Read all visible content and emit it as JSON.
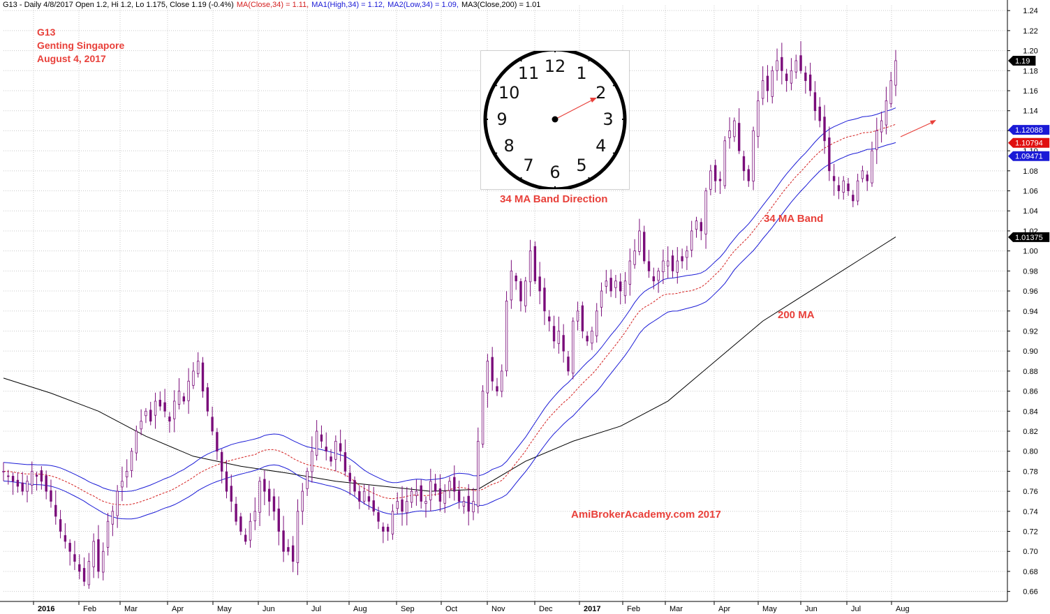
{
  "header": {
    "symbol_info": "G13 - Daily 4/8/2017 Open 1.2, Hi 1.2, Lo 1.175, Close 1.19 (-0.4%)",
    "ma_close_34": "MA(Close,34) = 1.11,",
    "ma1_high_34": "MA1(High,34) = 1.12,",
    "ma2_low_34": "MA2(Low,34) = 1.09,",
    "ma3_close_200": "MA3(Close,200) = 1.01"
  },
  "annotations": {
    "ticker": "G13",
    "company": "Genting Singapore",
    "date": "August 4, 2017",
    "clock_caption": "34 MA Band Direction",
    "band_label": "34 MA Band",
    "ma200_label": "200 MA",
    "watermark": "AmiBrokerAcademy.com  2017"
  },
  "price_tags": {
    "last": "1.19",
    "ma_high": "1.12088",
    "ma_close": "1.10794",
    "ma_low": "1.09471",
    "ma_200": "1.01375"
  },
  "clock": {
    "numbers": [
      "12",
      "1",
      "2",
      "3",
      "4",
      "5",
      "6",
      "7",
      "8",
      "9",
      "10",
      "11"
    ]
  },
  "colors": {
    "candle": "#7a0d7a",
    "band": "#1a1ad6",
    "ma_close": "#d42020",
    "ma_200": "#000000",
    "annotation": "#e8403a",
    "grid": "#c8c8c8"
  },
  "chart_data": {
    "type": "line",
    "title": "G13 - Daily 4/8/2017",
    "x_months": [
      "2016",
      "Feb",
      "Mar",
      "Apr",
      "May",
      "Jun",
      "Jul",
      "Aug",
      "Sep",
      "Oct",
      "Nov",
      "Dec",
      "2017",
      "Feb",
      "Mar",
      "Apr",
      "May",
      "Jun",
      "Jul",
      "Aug"
    ],
    "y_ticks": [
      "1.24",
      "1.22",
      "1.20",
      "1.18",
      "1.16",
      "1.14",
      "1.12",
      "1.10",
      "1.08",
      "1.06",
      "1.04",
      "1.02",
      "1.00",
      "0.98",
      "0.96",
      "0.94",
      "0.92",
      "0.90",
      "0.88",
      "0.86",
      "0.84",
      "0.82",
      "0.80",
      "0.78",
      "0.76",
      "0.74",
      "0.72",
      "0.70",
      "0.68",
      "0.66"
    ],
    "ylim": [
      0.65,
      1.245
    ],
    "close_series": [
      [
        0,
        0.78
      ],
      [
        2,
        0.77
      ],
      [
        4,
        0.76
      ],
      [
        6,
        0.78
      ],
      [
        8,
        0.77
      ],
      [
        10,
        0.75
      ],
      [
        12,
        0.72
      ],
      [
        14,
        0.7
      ],
      [
        16,
        0.68
      ],
      [
        17,
        0.67
      ],
      [
        18,
        0.69
      ],
      [
        19,
        0.71
      ],
      [
        20,
        0.68
      ],
      [
        21,
        0.7
      ],
      [
        22,
        0.73
      ],
      [
        23,
        0.74
      ],
      [
        24,
        0.76
      ],
      [
        25,
        0.77
      ],
      [
        26,
        0.78
      ],
      [
        27,
        0.8
      ],
      [
        28,
        0.82
      ],
      [
        30,
        0.84
      ],
      [
        31,
        0.83
      ],
      [
        32,
        0.85
      ],
      [
        34,
        0.84
      ],
      [
        35,
        0.83
      ],
      [
        36,
        0.85
      ],
      [
        37,
        0.86
      ],
      [
        38,
        0.85
      ],
      [
        39,
        0.87
      ],
      [
        40,
        0.88
      ],
      [
        41,
        0.89
      ],
      [
        42,
        0.86
      ],
      [
        43,
        0.84
      ],
      [
        44,
        0.82
      ],
      [
        45,
        0.8
      ],
      [
        46,
        0.78
      ],
      [
        47,
        0.76
      ],
      [
        48,
        0.75
      ],
      [
        49,
        0.73
      ],
      [
        50,
        0.72
      ],
      [
        51,
        0.71
      ],
      [
        52,
        0.73
      ],
      [
        53,
        0.74
      ],
      [
        54,
        0.77
      ],
      [
        55,
        0.76
      ],
      [
        56,
        0.75
      ],
      [
        57,
        0.74
      ],
      [
        58,
        0.72
      ],
      [
        59,
        0.7
      ],
      [
        60,
        0.7
      ],
      [
        61,
        0.69
      ],
      [
        62,
        0.74
      ],
      [
        63,
        0.76
      ],
      [
        64,
        0.78
      ],
      [
        65,
        0.8
      ],
      [
        66,
        0.82
      ],
      [
        67,
        0.81
      ],
      [
        68,
        0.8
      ],
      [
        69,
        0.79
      ],
      [
        70,
        0.81
      ],
      [
        71,
        0.8
      ],
      [
        72,
        0.78
      ],
      [
        73,
        0.77
      ],
      [
        74,
        0.76
      ],
      [
        75,
        0.75
      ],
      [
        76,
        0.76
      ],
      [
        77,
        0.75
      ],
      [
        78,
        0.74
      ],
      [
        79,
        0.73
      ],
      [
        80,
        0.72
      ],
      [
        81,
        0.72
      ],
      [
        82,
        0.74
      ],
      [
        83,
        0.75
      ],
      [
        84,
        0.74
      ],
      [
        85,
        0.75
      ],
      [
        86,
        0.76
      ],
      [
        87,
        0.76
      ],
      [
        88,
        0.75
      ],
      [
        89,
        0.75
      ],
      [
        90,
        0.77
      ],
      [
        91,
        0.76
      ],
      [
        92,
        0.75
      ],
      [
        93,
        0.76
      ],
      [
        94,
        0.77
      ],
      [
        95,
        0.76
      ],
      [
        96,
        0.75
      ],
      [
        97,
        0.75
      ],
      [
        98,
        0.74
      ],
      [
        99,
        0.75
      ],
      [
        100,
        0.81
      ],
      [
        101,
        0.86
      ],
      [
        102,
        0.89
      ],
      [
        103,
        0.87
      ],
      [
        104,
        0.86
      ],
      [
        105,
        0.88
      ],
      [
        106,
        0.95
      ],
      [
        107,
        0.98
      ],
      [
        108,
        0.97
      ],
      [
        109,
        0.95
      ],
      [
        110,
        0.97
      ],
      [
        111,
        1.0
      ],
      [
        112,
        0.97
      ],
      [
        113,
        0.96
      ],
      [
        114,
        0.94
      ],
      [
        115,
        0.93
      ],
      [
        116,
        0.91
      ],
      [
        117,
        0.92
      ],
      [
        118,
        0.9
      ],
      [
        119,
        0.88
      ],
      [
        120,
        0.93
      ],
      [
        121,
        0.94
      ],
      [
        122,
        0.92
      ],
      [
        123,
        0.91
      ],
      [
        124,
        0.92
      ],
      [
        125,
        0.94
      ],
      [
        126,
        0.96
      ],
      [
        127,
        0.97
      ],
      [
        128,
        0.96
      ],
      [
        129,
        0.97
      ],
      [
        130,
        0.96
      ],
      [
        131,
        0.97
      ],
      [
        132,
        0.99
      ],
      [
        133,
        1.0
      ],
      [
        134,
        1.02
      ],
      [
        135,
        0.99
      ],
      [
        136,
        0.98
      ],
      [
        137,
        0.97
      ],
      [
        138,
        0.98
      ],
      [
        139,
        0.99
      ],
      [
        140,
        0.99
      ],
      [
        141,
        0.98
      ],
      [
        142,
        0.99
      ],
      [
        143,
        0.99
      ],
      [
        144,
        1.0
      ],
      [
        145,
        1.02
      ],
      [
        146,
        1.03
      ],
      [
        147,
        1.02
      ],
      [
        148,
        1.06
      ],
      [
        149,
        1.08
      ],
      [
        150,
        1.07
      ],
      [
        151,
        1.07
      ],
      [
        152,
        1.11
      ],
      [
        153,
        1.12
      ],
      [
        154,
        1.13
      ],
      [
        155,
        1.1
      ],
      [
        156,
        1.08
      ],
      [
        157,
        1.07
      ],
      [
        158,
        1.12
      ],
      [
        159,
        1.15
      ],
      [
        160,
        1.17
      ],
      [
        161,
        1.16
      ],
      [
        162,
        1.18
      ],
      [
        163,
        1.19
      ],
      [
        164,
        1.18
      ],
      [
        165,
        1.17
      ],
      [
        166,
        1.18
      ],
      [
        167,
        1.19
      ],
      [
        168,
        1.18
      ],
      [
        169,
        1.17
      ],
      [
        170,
        1.16
      ],
      [
        171,
        1.14
      ],
      [
        172,
        1.13
      ],
      [
        173,
        1.11
      ],
      [
        174,
        1.08
      ],
      [
        175,
        1.07
      ],
      [
        176,
        1.06
      ],
      [
        177,
        1.07
      ],
      [
        178,
        1.06
      ],
      [
        179,
        1.05
      ],
      [
        180,
        1.07
      ],
      [
        181,
        1.08
      ],
      [
        182,
        1.07
      ],
      [
        183,
        1.1
      ],
      [
        184,
        1.12
      ],
      [
        185,
        1.13
      ],
      [
        186,
        1.15
      ],
      [
        187,
        1.17
      ],
      [
        188,
        1.19
      ]
    ],
    "ma200_series": [
      [
        0,
        0.873
      ],
      [
        10,
        0.858
      ],
      [
        20,
        0.84
      ],
      [
        30,
        0.815
      ],
      [
        40,
        0.795
      ],
      [
        50,
        0.785
      ],
      [
        60,
        0.778
      ],
      [
        70,
        0.77
      ],
      [
        80,
        0.765
      ],
      [
        90,
        0.76
      ],
      [
        100,
        0.762
      ],
      [
        110,
        0.79
      ],
      [
        120,
        0.81
      ],
      [
        130,
        0.825
      ],
      [
        140,
        0.85
      ],
      [
        150,
        0.89
      ],
      [
        160,
        0.93
      ],
      [
        170,
        0.96
      ],
      [
        180,
        0.99
      ],
      [
        188,
        1.014
      ]
    ]
  }
}
